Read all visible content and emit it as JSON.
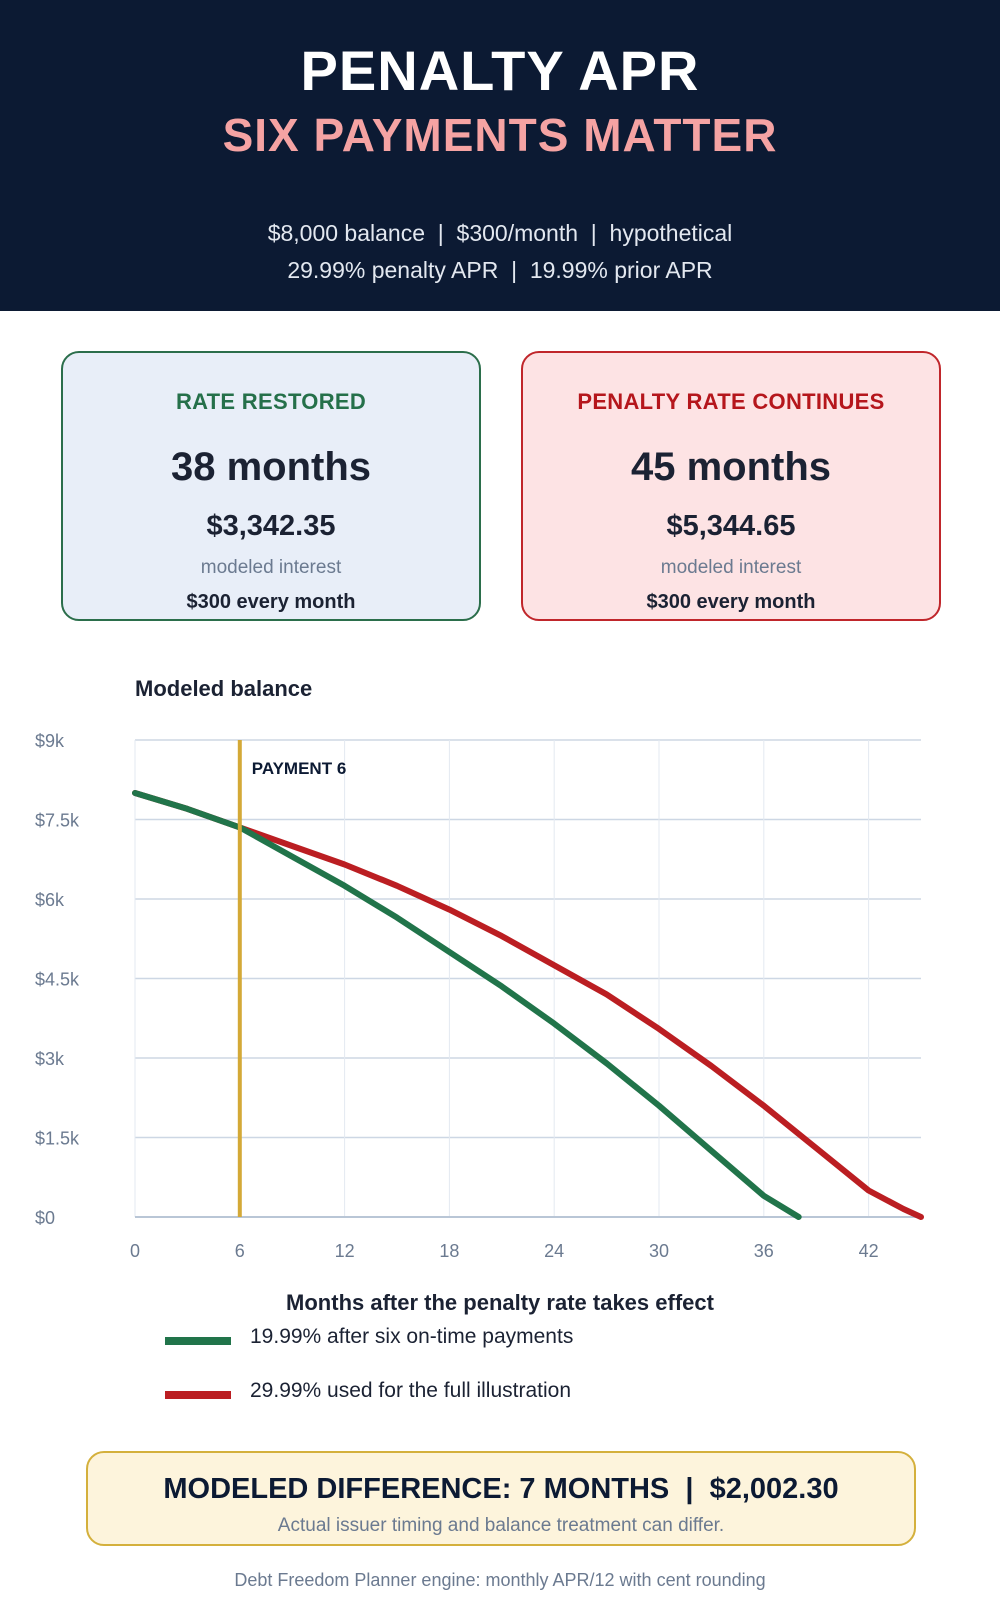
{
  "header": {
    "title": "PENALTY APR",
    "subtitle": "SIX PAYMENTS MATTER",
    "line1": "$8,000 balance  |  $300/month  |  hypothetical",
    "line2": "29.99% penalty APR  |  19.99% prior APR"
  },
  "cards": {
    "restored": {
      "label": "RATE RESTORED",
      "months": "38 months",
      "amount": "$3,342.35",
      "note": "modeled interest",
      "payment": "$300 every month",
      "color": "#2b6e4b"
    },
    "penalty": {
      "label": "PENALTY RATE CONTINUES",
      "months": "45 months",
      "amount": "$5,344.65",
      "note": "modeled interest",
      "payment": "$300 every month",
      "color": "#c0262b"
    }
  },
  "chart_data": {
    "type": "line",
    "title": "Modeled balance",
    "xlabel": "Months after the penalty rate takes effect",
    "ylabel": "",
    "xlim": [
      0,
      45
    ],
    "ylim": [
      0,
      9000
    ],
    "x_ticks": [
      0,
      6,
      12,
      18,
      24,
      30,
      36,
      42
    ],
    "x_tick_labels": [
      "0",
      "6",
      "12",
      "18",
      "24",
      "30",
      "36",
      "42"
    ],
    "y_ticks": [
      0,
      1500,
      3000,
      4500,
      6000,
      7500,
      9000
    ],
    "y_tick_labels": [
      "$0",
      "$1.5k",
      "$3k",
      "$4.5k",
      "$6k",
      "$7.5k",
      "$9k"
    ],
    "grid": true,
    "legend_position": "bottom",
    "annotation": {
      "x": 6,
      "label": "PAYMENT 6",
      "color": "#d4a937"
    },
    "series": [
      {
        "name": "19.99% after six on-time payments",
        "color": "#21744a",
        "x": [
          0,
          3,
          6,
          9,
          12,
          15,
          18,
          21,
          24,
          27,
          30,
          33,
          36,
          38
        ],
        "y": [
          8000,
          7700,
          7350,
          6800,
          6250,
          5650,
          5000,
          4350,
          3650,
          2900,
          2100,
          1250,
          400,
          0
        ]
      },
      {
        "name": "29.99% used for the full illustration",
        "color": "#bb1e22",
        "x": [
          0,
          3,
          6,
          9,
          12,
          15,
          18,
          21,
          24,
          27,
          30,
          33,
          36,
          39,
          42,
          44,
          45
        ],
        "y": [
          8000,
          7700,
          7350,
          7000,
          6650,
          6250,
          5800,
          5300,
          4750,
          4200,
          3550,
          2850,
          2100,
          1300,
          500,
          150,
          0
        ]
      }
    ]
  },
  "summary": {
    "difference": "MODELED DIFFERENCE: 7 MONTHS  |  $2,002.30",
    "note": "Actual issuer timing and balance treatment can differ."
  },
  "footer": "Debt Freedom Planner engine: monthly APR/12 with cent rounding"
}
